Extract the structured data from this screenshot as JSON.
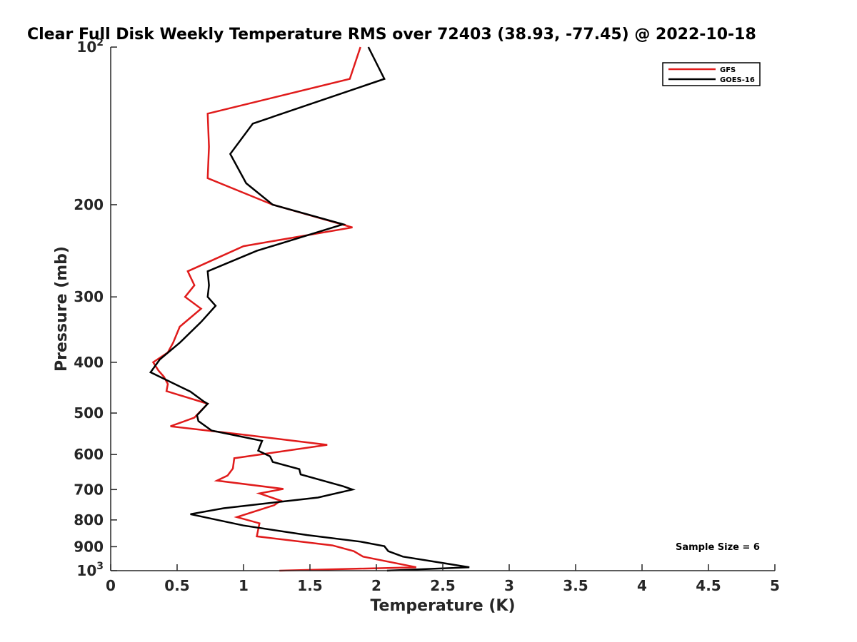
{
  "chart_data": {
    "type": "line",
    "title": "Clear Full Disk Weekly Temperature RMS over 72403 (38.93, -77.45) @ 2022-10-18",
    "xlabel": "Temperature (K)",
    "ylabel": "Pressure (mb)",
    "xlim": [
      0,
      5
    ],
    "ylim": [
      100,
      1000
    ],
    "yscale": "log",
    "y_reversed": true,
    "grid": false,
    "legend_position": "top-right",
    "xticks": [
      0,
      0.5,
      1,
      1.5,
      2,
      2.5,
      3,
      3.5,
      4,
      4.5,
      5
    ],
    "xtick_labels": [
      "0",
      "0.5",
      "1",
      "1.5",
      "2",
      "2.5",
      "3",
      "3.5",
      "4",
      "4.5",
      "5"
    ],
    "yticks": [
      100,
      200,
      300,
      400,
      500,
      600,
      700,
      800,
      900,
      1000
    ],
    "ytick_labels": [
      {
        "base": "10",
        "exp": "2"
      },
      {
        "base": "200"
      },
      {
        "base": "300"
      },
      {
        "base": "400"
      },
      {
        "base": "500"
      },
      {
        "base": "600"
      },
      {
        "base": "700"
      },
      {
        "base": "800"
      },
      {
        "base": "900"
      },
      {
        "base": "10",
        "exp": "3"
      }
    ],
    "annotation": "Sample Size = 6",
    "series": [
      {
        "name": "GFS",
        "color": "#e01b1b",
        "points": [
          [
            1.88,
            100
          ],
          [
            1.8,
            115
          ],
          [
            0.73,
            134
          ],
          [
            0.74,
            155
          ],
          [
            0.73,
            178
          ],
          [
            1.22,
            200
          ],
          [
            1.82,
            221
          ],
          [
            1.0,
            240
          ],
          [
            0.58,
            268
          ],
          [
            0.63,
            285
          ],
          [
            0.56,
            300
          ],
          [
            0.68,
            316
          ],
          [
            0.52,
            342
          ],
          [
            0.47,
            367
          ],
          [
            0.43,
            383
          ],
          [
            0.32,
            400
          ],
          [
            0.36,
            415
          ],
          [
            0.4,
            426
          ],
          [
            0.43,
            440
          ],
          [
            0.42,
            454
          ],
          [
            0.73,
            480
          ],
          [
            0.63,
            510
          ],
          [
            0.45,
            530
          ],
          [
            1.0,
            550
          ],
          [
            1.63,
            575
          ],
          [
            0.93,
            610
          ],
          [
            0.92,
            638
          ],
          [
            0.88,
            658
          ],
          [
            0.8,
            673
          ],
          [
            1.3,
            698
          ],
          [
            1.12,
            712
          ],
          [
            1.28,
            735
          ],
          [
            1.23,
            750
          ],
          [
            0.95,
            790
          ],
          [
            1.12,
            812
          ],
          [
            1.1,
            860
          ],
          [
            1.67,
            895
          ],
          [
            1.83,
            918
          ],
          [
            1.9,
            940
          ],
          [
            2.3,
            985
          ],
          [
            1.27,
            1000
          ]
        ]
      },
      {
        "name": "GOES-16",
        "color": "#000000",
        "points": [
          [
            1.94,
            100
          ],
          [
            2.06,
            115
          ],
          [
            1.07,
            140
          ],
          [
            0.9,
            160
          ],
          [
            1.02,
            182
          ],
          [
            1.22,
            200
          ],
          [
            1.75,
            218
          ],
          [
            1.1,
            245
          ],
          [
            0.73,
            268
          ],
          [
            0.74,
            285
          ],
          [
            0.73,
            300
          ],
          [
            0.79,
            312
          ],
          [
            0.68,
            335
          ],
          [
            0.52,
            367
          ],
          [
            0.37,
            395
          ],
          [
            0.3,
            418
          ],
          [
            0.6,
            455
          ],
          [
            0.7,
            475
          ],
          [
            0.73,
            480
          ],
          [
            0.65,
            505
          ],
          [
            0.66,
            518
          ],
          [
            0.76,
            540
          ],
          [
            1.14,
            565
          ],
          [
            1.11,
            590
          ],
          [
            1.2,
            605
          ],
          [
            1.22,
            620
          ],
          [
            1.42,
            640
          ],
          [
            1.43,
            655
          ],
          [
            1.75,
            690
          ],
          [
            1.82,
            700
          ],
          [
            1.56,
            725
          ],
          [
            1.25,
            740
          ],
          [
            0.85,
            760
          ],
          [
            0.6,
            780
          ],
          [
            1.0,
            820
          ],
          [
            1.48,
            855
          ],
          [
            1.88,
            880
          ],
          [
            2.06,
            898
          ],
          [
            2.09,
            918
          ],
          [
            2.2,
            940
          ],
          [
            2.7,
            985
          ],
          [
            2.08,
            1000
          ]
        ]
      }
    ]
  }
}
